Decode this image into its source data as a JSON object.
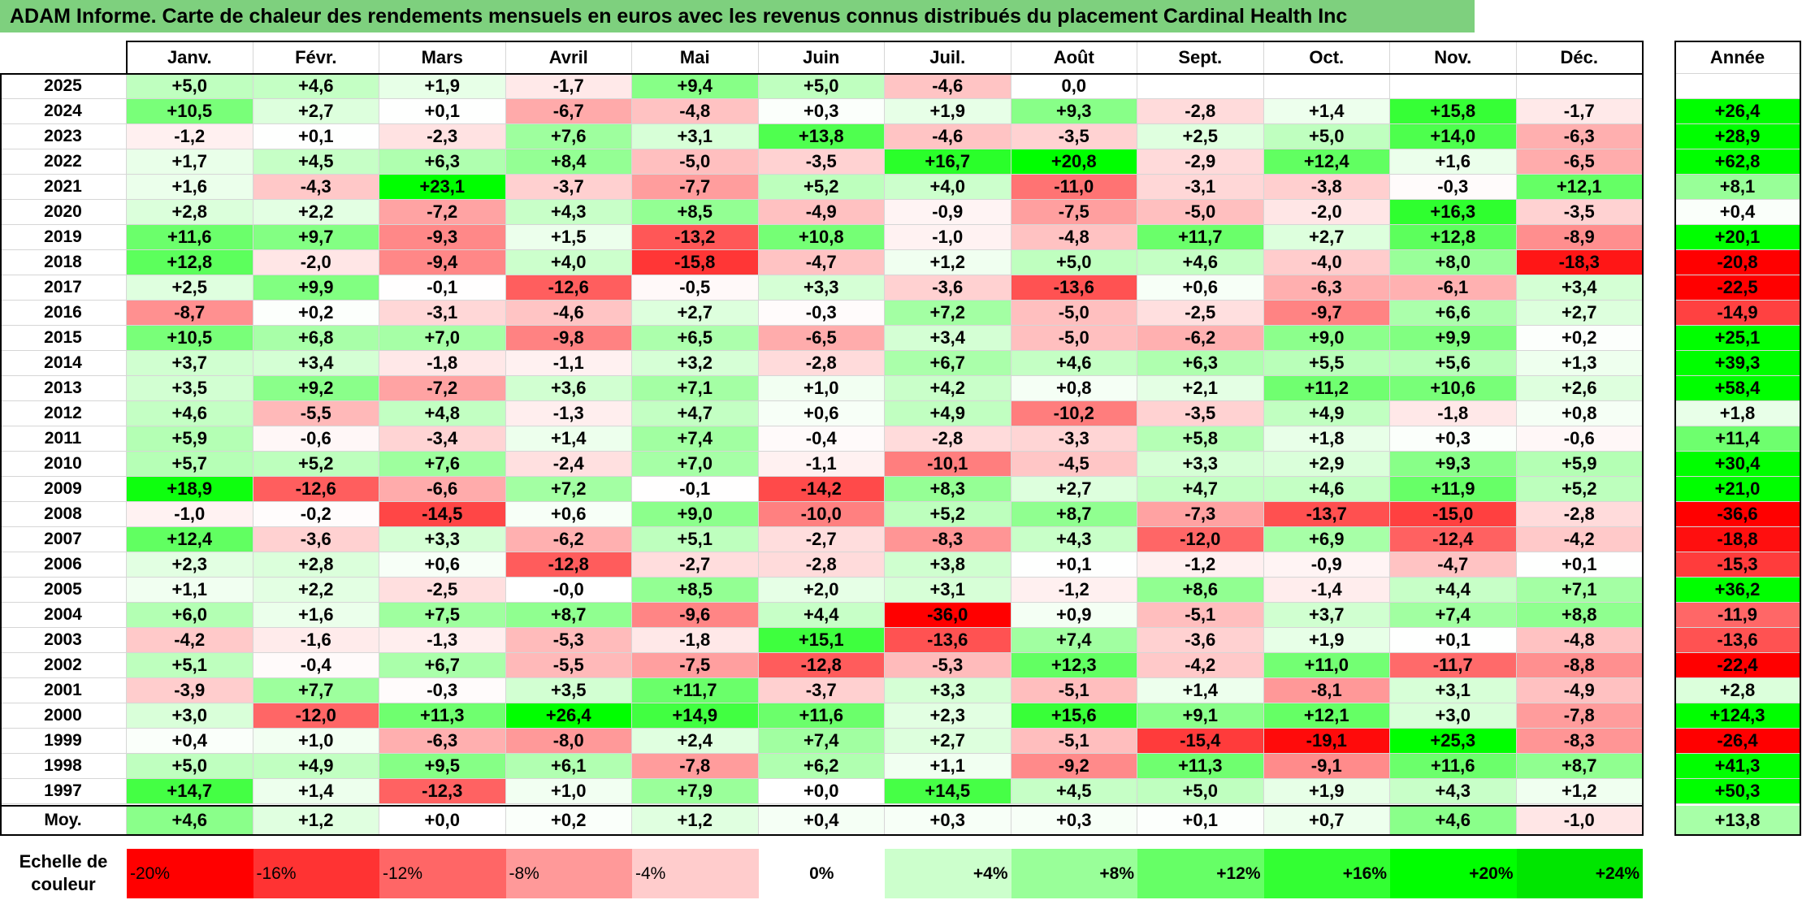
{
  "title": "ADAM Informe. Carte de chaleur des rendements mensuels en euros avec les revenus connus distribués du placement Cardinal Health Inc",
  "chart_data": {
    "type": "heatmap",
    "title": "ADAM Informe. Carte de chaleur des rendements mensuels en euros avec les revenus connus distribués du placement Cardinal Health Inc",
    "months": [
      "Janv.",
      "Févr.",
      "Mars",
      "Avril",
      "Mai",
      "Juin",
      "Juil.",
      "Août",
      "Sept.",
      "Oct.",
      "Nov.",
      "Déc."
    ],
    "year_header": "Année",
    "rows": [
      {
        "year": "2025",
        "values": [
          "+5,0",
          "+4,6",
          "+1,9",
          "-1,7",
          "+9,4",
          "+5,0",
          "-4,6",
          "0,0",
          "",
          "",
          "",
          ""
        ],
        "annual": ""
      },
      {
        "year": "2024",
        "values": [
          "+10,5",
          "+2,7",
          "+0,1",
          "-6,7",
          "-4,8",
          "+0,3",
          "+1,9",
          "+9,3",
          "-2,8",
          "+1,4",
          "+15,8",
          "-1,7"
        ],
        "annual": "+26,4"
      },
      {
        "year": "2023",
        "values": [
          "-1,2",
          "+0,1",
          "-2,3",
          "+7,6",
          "+3,1",
          "+13,8",
          "-4,6",
          "-3,5",
          "+2,5",
          "+5,0",
          "+14,0",
          "-6,3"
        ],
        "annual": "+28,9"
      },
      {
        "year": "2022",
        "values": [
          "+1,7",
          "+4,5",
          "+6,3",
          "+8,4",
          "-5,0",
          "-3,5",
          "+16,7",
          "+20,8",
          "-2,9",
          "+12,4",
          "+1,6",
          "-6,5"
        ],
        "annual": "+62,8"
      },
      {
        "year": "2021",
        "values": [
          "+1,6",
          "-4,3",
          "+23,1",
          "-3,7",
          "-7,7",
          "+5,2",
          "+4,0",
          "-11,0",
          "-3,1",
          "-3,8",
          "-0,3",
          "+12,1"
        ],
        "annual": "+8,1"
      },
      {
        "year": "2020",
        "values": [
          "+2,8",
          "+2,2",
          "-7,2",
          "+4,3",
          "+8,5",
          "-4,9",
          "-0,9",
          "-7,5",
          "-5,0",
          "-2,0",
          "+16,3",
          "-3,5"
        ],
        "annual": "+0,4"
      },
      {
        "year": "2019",
        "values": [
          "+11,6",
          "+9,7",
          "-9,3",
          "+1,5",
          "-13,2",
          "+10,8",
          "-1,0",
          "-4,8",
          "+11,7",
          "+2,7",
          "+12,8",
          "-8,9"
        ],
        "annual": "+20,1"
      },
      {
        "year": "2018",
        "values": [
          "+12,8",
          "-2,0",
          "-9,4",
          "+4,0",
          "-15,8",
          "-4,7",
          "+1,2",
          "+5,0",
          "+4,6",
          "-4,0",
          "+8,0",
          "-18,3"
        ],
        "annual": "-20,8"
      },
      {
        "year": "2017",
        "values": [
          "+2,5",
          "+9,9",
          "-0,1",
          "-12,6",
          "-0,5",
          "+3,3",
          "-3,6",
          "-13,6",
          "+0,6",
          "-6,3",
          "-6,1",
          "+3,4"
        ],
        "annual": "-22,5"
      },
      {
        "year": "2016",
        "values": [
          "-8,7",
          "+0,2",
          "-3,1",
          "-4,6",
          "+2,7",
          "-0,3",
          "+7,2",
          "-5,0",
          "-2,5",
          "-9,7",
          "+6,6",
          "+2,7"
        ],
        "annual": "-14,9"
      },
      {
        "year": "2015",
        "values": [
          "+10,5",
          "+6,8",
          "+7,0",
          "-9,8",
          "+6,5",
          "-6,5",
          "+3,4",
          "-5,0",
          "-6,2",
          "+9,0",
          "+9,9",
          "+0,2"
        ],
        "annual": "+25,1"
      },
      {
        "year": "2014",
        "values": [
          "+3,7",
          "+3,4",
          "-1,8",
          "-1,1",
          "+3,2",
          "-2,8",
          "+6,7",
          "+4,6",
          "+6,3",
          "+5,5",
          "+5,6",
          "+1,3"
        ],
        "annual": "+39,3"
      },
      {
        "year": "2013",
        "values": [
          "+3,5",
          "+9,2",
          "-7,2",
          "+3,6",
          "+7,1",
          "+1,0",
          "+4,2",
          "+0,8",
          "+2,1",
          "+11,2",
          "+10,6",
          "+2,6"
        ],
        "annual": "+58,4"
      },
      {
        "year": "2012",
        "values": [
          "+4,6",
          "-5,5",
          "+4,8",
          "-1,3",
          "+4,7",
          "+0,6",
          "+4,9",
          "-10,2",
          "-3,5",
          "+4,9",
          "-1,8",
          "+0,8"
        ],
        "annual": "+1,8"
      },
      {
        "year": "2011",
        "values": [
          "+5,9",
          "-0,6",
          "-3,4",
          "+1,4",
          "+7,4",
          "-0,4",
          "-2,8",
          "-3,3",
          "+5,8",
          "+1,8",
          "+0,3",
          "-0,6"
        ],
        "annual": "+11,4"
      },
      {
        "year": "2010",
        "values": [
          "+5,7",
          "+5,2",
          "+7,6",
          "-2,4",
          "+7,0",
          "-1,1",
          "-10,1",
          "-4,5",
          "+3,3",
          "+2,9",
          "+9,3",
          "+5,9"
        ],
        "annual": "+30,4"
      },
      {
        "year": "2009",
        "values": [
          "+18,9",
          "-12,6",
          "-6,6",
          "+7,2",
          "-0,1",
          "-14,2",
          "+8,3",
          "+2,7",
          "+4,7",
          "+4,6",
          "+11,9",
          "+5,2"
        ],
        "annual": "+21,0"
      },
      {
        "year": "2008",
        "values": [
          "-1,0",
          "-0,2",
          "-14,5",
          "+0,6",
          "+9,0",
          "-10,0",
          "+5,2",
          "+8,7",
          "-7,3",
          "-13,7",
          "-15,0",
          "-2,8"
        ],
        "annual": "-36,6"
      },
      {
        "year": "2007",
        "values": [
          "+12,4",
          "-3,6",
          "+3,3",
          "-6,2",
          "+5,1",
          "-2,7",
          "-8,3",
          "+4,3",
          "-12,0",
          "+6,9",
          "-12,4",
          "-4,2"
        ],
        "annual": "-18,8"
      },
      {
        "year": "2006",
        "values": [
          "+2,3",
          "+2,8",
          "+0,6",
          "-12,8",
          "-2,7",
          "-2,8",
          "+3,8",
          "+0,1",
          "-1,2",
          "-0,9",
          "-4,7",
          "+0,1"
        ],
        "annual": "-15,3"
      },
      {
        "year": "2005",
        "values": [
          "+1,1",
          "+2,2",
          "-2,5",
          "-0,0",
          "+8,5",
          "+2,0",
          "+3,1",
          "-1,2",
          "+8,6",
          "-1,4",
          "+4,4",
          "+7,1"
        ],
        "annual": "+36,2"
      },
      {
        "year": "2004",
        "values": [
          "+6,0",
          "+1,6",
          "+7,5",
          "+8,7",
          "-9,6",
          "+4,4",
          "-36,0",
          "+0,9",
          "-5,1",
          "+3,7",
          "+7,4",
          "+8,8"
        ],
        "annual": "-11,9"
      },
      {
        "year": "2003",
        "values": [
          "-4,2",
          "-1,6",
          "-1,3",
          "-5,3",
          "-1,8",
          "+15,1",
          "-13,6",
          "+7,4",
          "-3,6",
          "+1,9",
          "+0,1",
          "-4,8"
        ],
        "annual": "-13,6"
      },
      {
        "year": "2002",
        "values": [
          "+5,1",
          "-0,4",
          "+6,7",
          "-5,5",
          "-7,5",
          "-12,8",
          "-5,3",
          "+12,3",
          "-4,2",
          "+11,0",
          "-11,7",
          "-8,8"
        ],
        "annual": "-22,4"
      },
      {
        "year": "2001",
        "values": [
          "-3,9",
          "+7,7",
          "-0,3",
          "+3,5",
          "+11,7",
          "-3,7",
          "+3,3",
          "-5,1",
          "+1,4",
          "-8,1",
          "+3,1",
          "-4,9"
        ],
        "annual": "+2,8"
      },
      {
        "year": "2000",
        "values": [
          "+3,0",
          "-12,0",
          "+11,3",
          "+26,4",
          "+14,9",
          "+11,6",
          "+2,3",
          "+15,6",
          "+9,1",
          "+12,1",
          "+3,0",
          "-7,8"
        ],
        "annual": "+124,3"
      },
      {
        "year": "1999",
        "values": [
          "+0,4",
          "+1,0",
          "-6,3",
          "-8,0",
          "+2,4",
          "+7,4",
          "+2,7",
          "-5,1",
          "-15,4",
          "-19,1",
          "+25,3",
          "-8,3"
        ],
        "annual": "-26,4"
      },
      {
        "year": "1998",
        "values": [
          "+5,0",
          "+4,9",
          "+9,5",
          "+6,1",
          "-7,8",
          "+6,2",
          "+1,1",
          "-9,2",
          "+11,3",
          "-9,1",
          "+11,6",
          "+8,7"
        ],
        "annual": "+41,3"
      },
      {
        "year": "1997",
        "values": [
          "+14,7",
          "+1,4",
          "-12,3",
          "+1,0",
          "+7,9",
          "+0,0",
          "+14,5",
          "+4,5",
          "+5,0",
          "+1,9",
          "+4,3",
          "+1,2"
        ],
        "annual": "+50,3"
      }
    ],
    "average": {
      "label": "Moy.",
      "values": [
        "+4,6",
        "+1,2",
        "+0,0",
        "+0,2",
        "+1,2",
        "+0,4",
        "+0,3",
        "+0,3",
        "+0,1",
        "+0,7",
        "+4,6",
        "-1,0"
      ],
      "annual": "+13,8"
    },
    "scale": {
      "label": "Echelle de couleur",
      "stops": [
        "-20%",
        "-16%",
        "-12%",
        "-8%",
        "-4%",
        "0%",
        "+4%",
        "+8%",
        "+12%",
        "+16%",
        "+20%",
        "+24%"
      ],
      "colors": [
        "#ff0000",
        "#ff3333",
        "#ff6666",
        "#ff9999",
        "#ffcccc",
        "#ffffff",
        "#ccffcc",
        "#99ff99",
        "#66ff66",
        "#33ff33",
        "#00ff00",
        "#00e600"
      ]
    }
  }
}
